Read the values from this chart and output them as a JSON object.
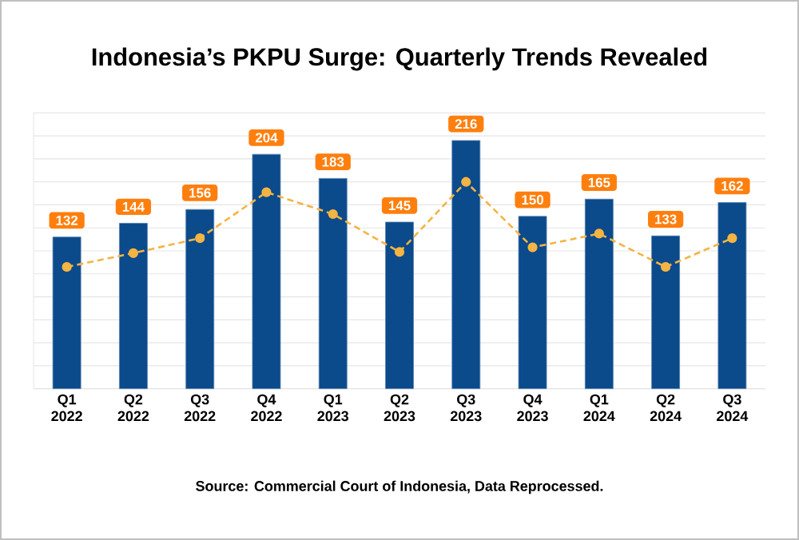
{
  "chart_data": {
    "type": "bar",
    "title": "Indonesia’s PKPU Surge: Quarterly Trends Revealed",
    "categories": [
      "Q1 2022",
      "Q2 2022",
      "Q3 2022",
      "Q4 2022",
      "Q1 2023",
      "Q2 2023",
      "Q3 2023",
      "Q4 2023",
      "Q1 2024",
      "Q2 2024",
      "Q3 2024"
    ],
    "series": [
      {
        "color": "#0b4a8b",
        "values": [
          132,
          144,
          156,
          204,
          183,
          145,
          216,
          150,
          165,
          133,
          162
        ],
        "value_labels": [
          "132",
          "144",
          "156",
          "204",
          "183",
          "145",
          "216",
          "150",
          "165",
          "133",
          "162"
        ]
      },
      {
        "type": "line",
        "color": "#f4b443",
        "marker": "circle",
        "line_style": "dashed",
        "values": [
          106,
          118,
          131,
          171,
          152,
          119,
          180,
          123,
          135,
          106,
          131
        ]
      }
    ],
    "ylim": [
      0,
      240
    ],
    "yticks": [
      {
        "value": 0,
        "label": null
      },
      {
        "value": 20,
        "label": null
      },
      {
        "value": 40,
        "label": null
      },
      {
        "value": 60,
        "label": null
      },
      {
        "value": 80,
        "label": null
      },
      {
        "value": 100,
        "label": null
      },
      {
        "value": 120,
        "label": null
      },
      {
        "value": 140,
        "label": null
      },
      {
        "value": 160,
        "label": null
      },
      {
        "value": 180,
        "label": null
      },
      {
        "value": 200,
        "label": null
      },
      {
        "value": 220,
        "label": null
      },
      {
        "value": 240,
        "label": null
      }
    ],
    "grid": "y",
    "tick_labels": "x",
    "annotations": [
      "Source: Commercial Court of Indonesia, Data Reprocessed."
    ]
  }
}
